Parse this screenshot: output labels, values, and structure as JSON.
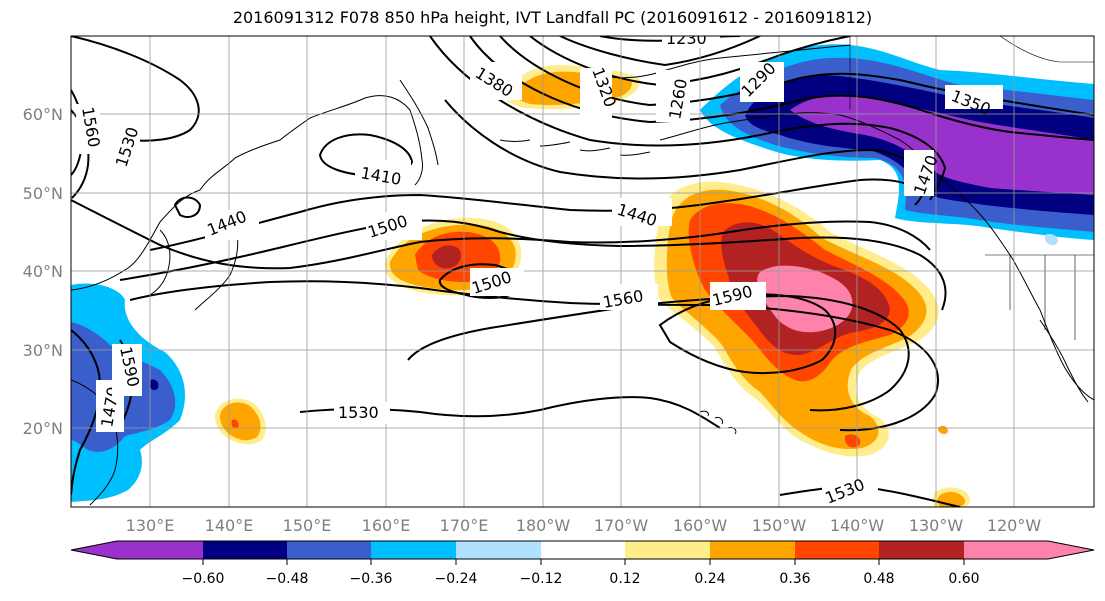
{
  "title": "2016091312 F078 850 hPa height, IVT Landfall PC (2016091612 - 2016091812)",
  "map": {
    "lat_labels": [
      "60°N",
      "50°N",
      "40°N",
      "30°N",
      "20°N"
    ],
    "lon_labels": [
      "130°E",
      "140°E",
      "150°E",
      "160°E",
      "170°E",
      "180°W",
      "170°W",
      "160°W",
      "150°W",
      "140°W",
      "130°W",
      "120°W"
    ],
    "contour_labels": [
      "1230",
      "1260",
      "1290",
      "1320",
      "1350",
      "1380",
      "1410",
      "1440",
      "1470",
      "1500",
      "1530",
      "1560",
      "1590"
    ],
    "colors": {
      "purple": "#9932cc",
      "navy": "#000080",
      "royal_blue": "#3a5fcd",
      "deep_sky": "#00bfff",
      "light_blue": "#b0e2ff",
      "white": "#ffffff",
      "light_yellow": "#ffec8b",
      "orange": "#ffa500",
      "orange_red": "#ff4500",
      "firebrick": "#b22222",
      "pink": "#ff82ab"
    }
  },
  "colorbar": {
    "tick_labels": [
      "−0.60",
      "−0.48",
      "−0.36",
      "−0.24",
      "−0.12",
      "0.12",
      "0.24",
      "0.36",
      "0.48",
      "0.60"
    ],
    "bin_colors": [
      "#9932cc",
      "#000080",
      "#3a5fcd",
      "#00bfff",
      "#b0e2ff",
      "#ffffff",
      "#ffec8b",
      "#ffa500",
      "#ff4500",
      "#b22222",
      "#ff82ab"
    ]
  }
}
